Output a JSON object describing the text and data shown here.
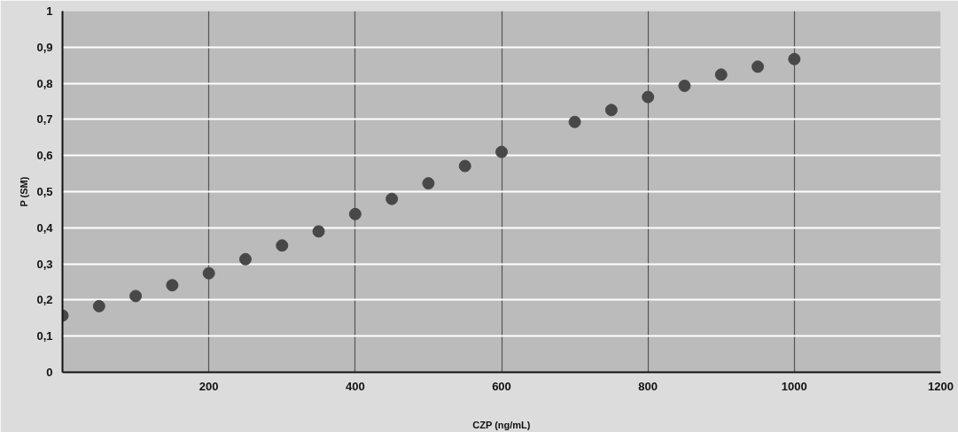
{
  "chart_data": {
    "type": "scatter",
    "xlabel": "CZP (ng/mL)",
    "ylabel": "P (SM)",
    "x": [
      0,
      50,
      100,
      150,
      200,
      250,
      300,
      350,
      400,
      450,
      500,
      550,
      600,
      700,
      750,
      800,
      850,
      900,
      950,
      1000
    ],
    "series": [
      {
        "color": "#484848",
        "values": [
          0.157,
          0.183,
          0.211,
          0.241,
          0.274,
          0.313,
          0.351,
          0.39,
          0.438,
          0.48,
          0.523,
          0.571,
          0.61,
          0.693,
          0.726,
          0.762,
          0.793,
          0.824,
          0.846,
          0.867
        ]
      }
    ],
    "xlim": [
      0,
      1200
    ],
    "xticks": [
      {
        "value": 0,
        "label": null
      },
      200,
      400,
      600,
      800,
      1000,
      1200
    ],
    "ylim": [
      0,
      1
    ],
    "yticks": [
      0,
      {
        "value": 0.1,
        "label": "0,1"
      },
      {
        "value": 0.2,
        "label": "0,2"
      },
      {
        "value": 0.3,
        "label": "0,3"
      },
      {
        "value": 0.4,
        "label": "0,4"
      },
      {
        "value": 0.5,
        "label": "0,5"
      },
      {
        "value": 0.6,
        "label": "0,6"
      },
      {
        "value": 0.7,
        "label": "0,7"
      },
      {
        "value": 0.8,
        "label": "0,8"
      },
      {
        "value": 0.9,
        "label": "0,9"
      },
      1
    ],
    "grid": true,
    "marker": "circle"
  }
}
